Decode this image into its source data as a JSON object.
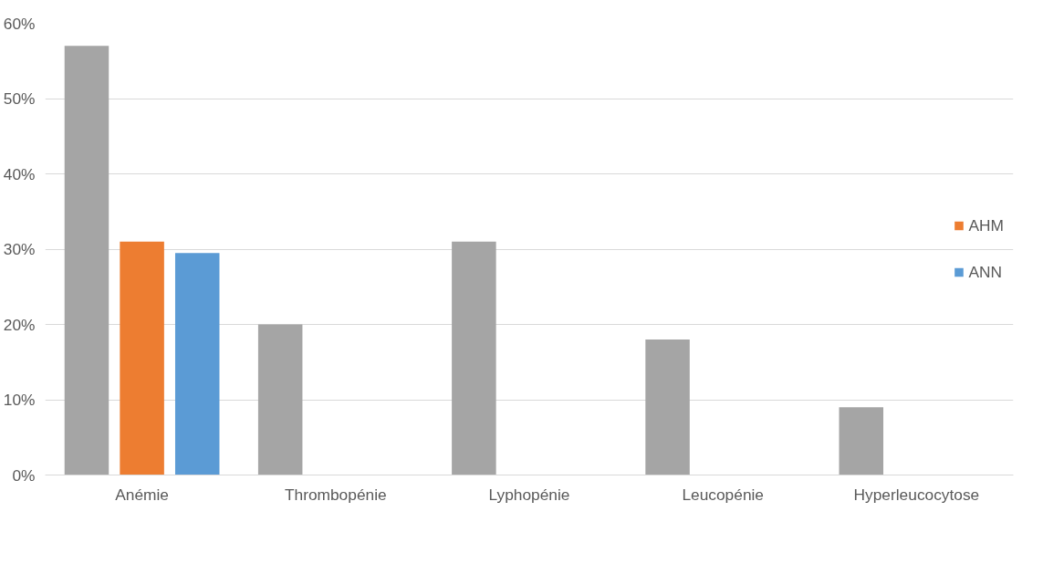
{
  "chart_data": {
    "type": "bar",
    "categories": [
      "Anémie",
      "Thrombopénie",
      "Lyphopénie",
      "Leucopénie",
      "Hyperleucocytose"
    ],
    "series": [
      {
        "color": "#a5a5a5",
        "values": [
          57,
          20,
          31,
          18,
          9
        ]
      },
      {
        "name": "AHM",
        "color": "#ed7d31",
        "values": [
          31,
          null,
          null,
          null,
          null
        ]
      },
      {
        "name": "ANN",
        "color": "#5b9bd5",
        "values": [
          29.5,
          null,
          null,
          null,
          null
        ]
      }
    ],
    "ylim": [
      0,
      60
    ],
    "yticks": [
      {
        "value": 0,
        "label": "0%"
      },
      {
        "value": 10,
        "label": "10%"
      },
      {
        "value": 20,
        "label": "20%"
      },
      {
        "value": 30,
        "label": "30%"
      },
      {
        "value": 40,
        "label": "40%"
      },
      {
        "value": 50,
        "label": "50%"
      },
      {
        "value": 60,
        "label": "60%"
      }
    ],
    "grid": "y",
    "legend": "right"
  }
}
